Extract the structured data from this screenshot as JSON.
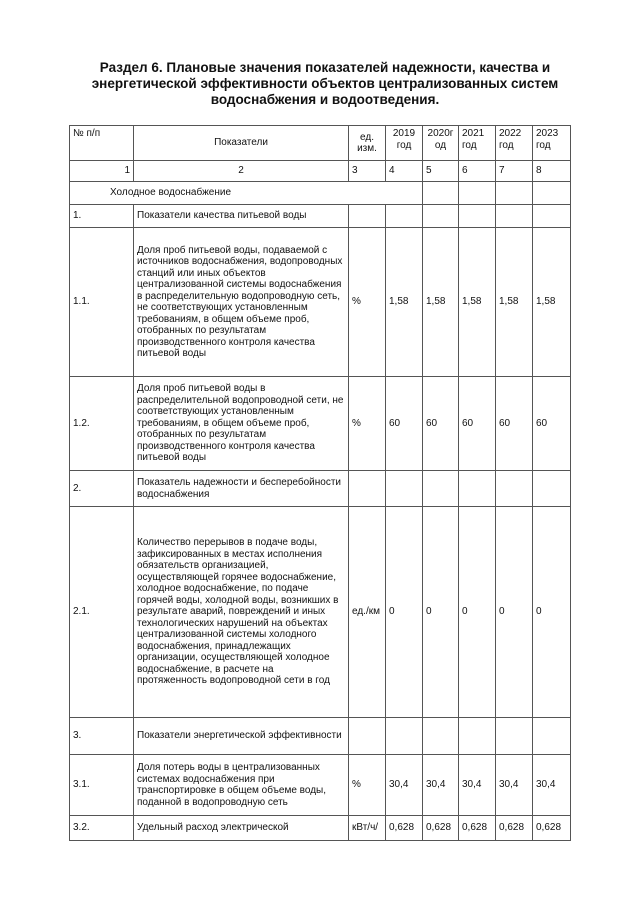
{
  "title": "Раздел 6. Плановые значения показателей надежности, качества и энергетической эффективности объектов централизованных систем водоснабжения и водоотведения.",
  "table": {
    "headers": [
      "№ п/п",
      "Показатели",
      "ед. изм.",
      "2019 год",
      "2020г од",
      "2021 год",
      "2022 год",
      "2023 год"
    ],
    "numbering": [
      "1",
      "2",
      "3",
      "4",
      "5",
      "6",
      "7",
      "8"
    ],
    "section": "Холодное водоснабжение",
    "rows": [
      {
        "num": "1.",
        "name": "Показатели качества питьевой воды",
        "unit": "",
        "values": [
          "",
          "",
          "",
          "",
          ""
        ]
      },
      {
        "num": "1.1.",
        "name": "Доля проб питьевой воды, подаваемой с источников водоснабжения, водопроводных станций или иных объектов централизованной системы водоснабжения в распределительную водопроводную сеть, не соответствующих установленным требованиям, в общем объеме проб, отобранных по результатам производственного контроля качества питьевой воды",
        "unit": "%",
        "values": [
          "1,58",
          "1,58",
          "1,58",
          "1,58",
          "1,58"
        ]
      },
      {
        "num": "1.2.",
        "name": "Доля проб питьевой воды в распределительной водопроводной сети, не соответствующих установленным требованиям, в общем объеме проб, отобранных по результатам производственного контроля качества питьевой воды",
        "unit": "%",
        "values": [
          "60",
          "60",
          "60",
          "60",
          "60"
        ]
      },
      {
        "num": "2.",
        "name": "Показатель надежности и бесперебойности водоснабжения",
        "unit": "",
        "values": [
          "",
          "",
          "",
          "",
          ""
        ]
      },
      {
        "num": "2.1.",
        "name": "Количество перерывов в подаче воды, зафиксированных в местах исполнения обязательств организацией, осуществляющей горячее водоснабжение, холодное водоснабжение, по подаче горячей воды, холодной воды, возникших в результате аварий, повреждений и иных технологических нарушений на объектах централизованной системы холодного водоснабжения, принадлежащих организации, осуществляющей холодное водоснабжение, в расчете на протяженность водопроводной сети в год",
        "unit": "ед./км",
        "values": [
          "0",
          "0",
          "0",
          "0",
          "0"
        ]
      },
      {
        "num": "3.",
        "name": "Показатели энергетической эффективности",
        "unit": "",
        "values": [
          "",
          "",
          "",
          "",
          ""
        ]
      },
      {
        "num": "3.1.",
        "name": "Доля потерь воды в централизованных системах водоснабжения при транспортировке в общем объеме воды, поданной в водопроводную сеть",
        "unit": "%",
        "values": [
          "30,4",
          "30,4",
          "30,4",
          "30,4",
          "30,4"
        ]
      },
      {
        "num": "3.2.",
        "name": "Удельный расход электрической",
        "unit": "кВт/ч/",
        "values": [
          "0,628",
          "0,628",
          "0,628",
          "0,628",
          "0,628"
        ]
      }
    ]
  }
}
